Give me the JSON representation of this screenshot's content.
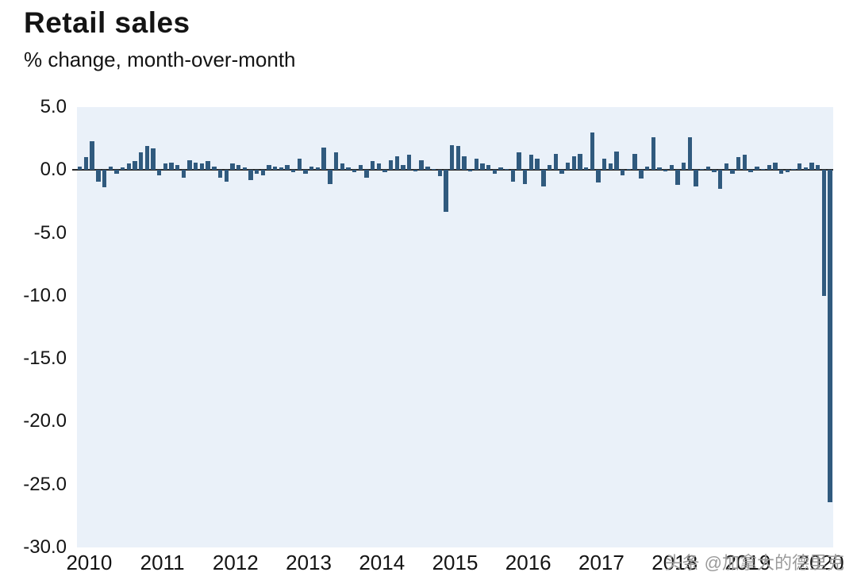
{
  "watermark": {
    "text": "头条 @加拿大的德里克"
  },
  "chart_data": {
    "type": "bar",
    "title": "Retail sales",
    "subtitle": "% change, month-over-month",
    "x_start": "2010-01",
    "x_years": [
      "2010",
      "2011",
      "2012",
      "2013",
      "2014",
      "2015",
      "2016",
      "2017",
      "2018",
      "2019",
      "2020"
    ],
    "ylim": [
      -30,
      5
    ],
    "yticks": [
      5.0,
      0.0,
      -5.0,
      -10.0,
      -15.0,
      -20.0,
      -25.0,
      -30.0
    ],
    "grid": false,
    "legend": "none",
    "bar_color": "#305a7e",
    "plot_bg": "#eaf1f9",
    "values": [
      0.3,
      1.0,
      2.3,
      -0.9,
      -1.4,
      0.3,
      -0.3,
      0.2,
      0.5,
      0.7,
      1.4,
      1.9,
      1.7,
      -0.4,
      0.5,
      0.6,
      0.4,
      -0.6,
      0.8,
      0.6,
      0.5,
      0.7,
      0.3,
      -0.6,
      -0.9,
      0.5,
      0.4,
      0.2,
      -0.8,
      -0.3,
      -0.4,
      0.4,
      0.3,
      0.2,
      0.4,
      -0.2,
      0.9,
      -0.3,
      0.3,
      0.2,
      1.8,
      -1.1,
      1.4,
      0.5,
      0.2,
      -0.2,
      0.4,
      -0.6,
      0.7,
      0.5,
      -0.2,
      0.8,
      1.1,
      0.4,
      1.2,
      -0.1,
      0.8,
      0.3,
      0.1,
      -0.5,
      -3.3,
      2.0,
      1.9,
      1.1,
      -0.1,
      0.9,
      0.5,
      0.4,
      -0.3,
      0.2,
      0.1,
      -0.9,
      1.4,
      -1.1,
      1.2,
      0.9,
      -1.3,
      0.4,
      1.3,
      -0.3,
      0.6,
      1.1,
      1.3,
      0.2,
      3.0,
      -1.0,
      0.9,
      0.5,
      1.5,
      -0.4,
      0.1,
      1.3,
      -0.7,
      0.3,
      2.6,
      0.2,
      -0.1,
      0.4,
      -1.2,
      0.6,
      2.6,
      -1.3,
      0.1,
      0.3,
      -0.2,
      -1.5,
      0.5,
      -0.3,
      1.0,
      1.2,
      -0.2,
      0.3,
      0.1,
      0.4,
      0.6,
      -0.3,
      -0.2,
      0.1,
      0.5,
      0.2,
      0.6,
      0.4,
      -10.0,
      -26.4
    ]
  }
}
